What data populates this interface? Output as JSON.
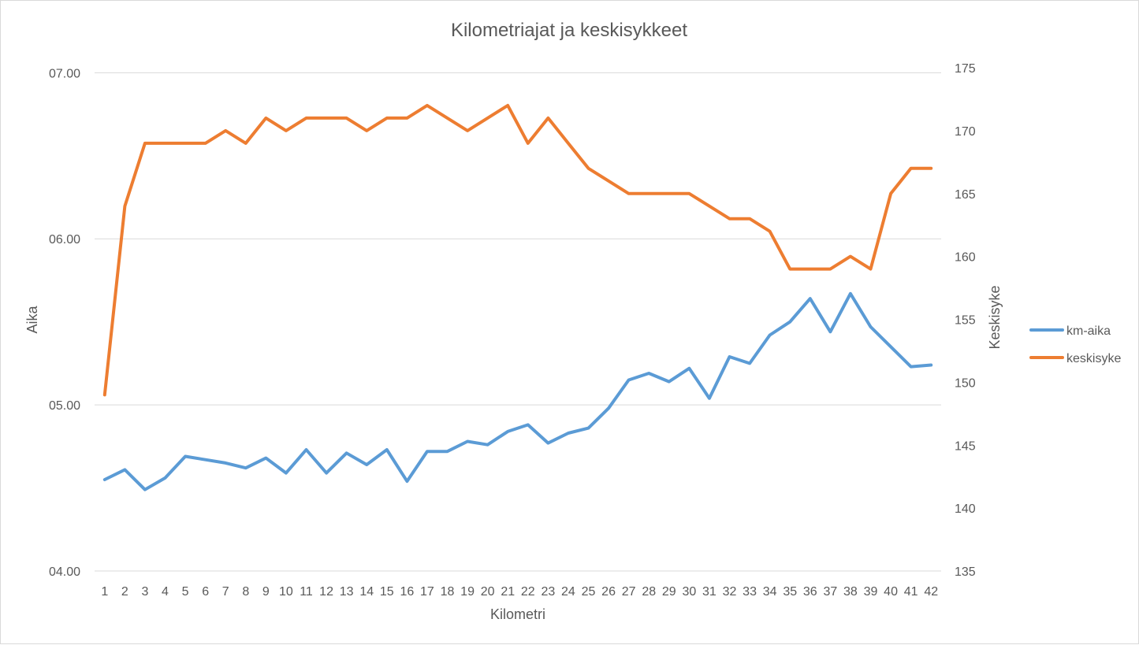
{
  "chart_data": {
    "type": "line",
    "title": "Kilometriajat ja keskisykkeet",
    "xlabel": "Kilometri",
    "ylabel": "Aika",
    "y2label": "Keskisyke",
    "categories": [
      "1",
      "2",
      "3",
      "4",
      "5",
      "6",
      "7",
      "8",
      "9",
      "10",
      "11",
      "12",
      "13",
      "14",
      "15",
      "16",
      "17",
      "18",
      "19",
      "20",
      "21",
      "22",
      "23",
      "24",
      "25",
      "26",
      "27",
      "28",
      "29",
      "30",
      "31",
      "32",
      "33",
      "34",
      "35",
      "36",
      "37",
      "38",
      "39",
      "40",
      "41",
      "42"
    ],
    "y_ticks": [
      "04.00",
      "05.00",
      "06.00",
      "07.00"
    ],
    "y_ticks_values": [
      4,
      5,
      6,
      7
    ],
    "ylim": [
      4,
      7.03
    ],
    "y2_ticks": [
      "135",
      "140",
      "145",
      "150",
      "155",
      "160",
      "165",
      "170",
      "175"
    ],
    "y2_ticks_values": [
      135,
      140,
      145,
      150,
      155,
      160,
      165,
      170,
      175
    ],
    "y2lim": [
      135,
      175
    ],
    "grid": true,
    "legend_position": "right",
    "series": [
      {
        "name": "km-aika",
        "axis": "left",
        "color": "#5b9bd5",
        "values": [
          4.55,
          4.61,
          4.49,
          4.56,
          4.69,
          4.67,
          4.65,
          4.62,
          4.68,
          4.59,
          4.73,
          4.59,
          4.71,
          4.64,
          4.73,
          4.54,
          4.72,
          4.72,
          4.78,
          4.76,
          4.84,
          4.88,
          4.77,
          4.83,
          4.86,
          4.98,
          5.15,
          5.19,
          5.14,
          5.22,
          5.04,
          5.29,
          5.25,
          5.42,
          5.5,
          5.64,
          5.44,
          5.67,
          5.47,
          5.35,
          5.23,
          5.24
        ]
      },
      {
        "name": "keskisyke",
        "axis": "right",
        "color": "#ed7d31",
        "values": [
          149,
          164,
          169,
          169,
          169,
          169,
          170,
          169,
          171,
          170,
          171,
          171,
          171,
          170,
          171,
          171,
          172,
          171,
          170,
          171,
          172,
          169,
          171,
          169,
          167,
          166,
          165,
          165,
          165,
          165,
          164,
          163,
          163,
          162,
          159,
          159,
          159,
          160,
          159,
          165,
          167,
          167
        ]
      }
    ]
  }
}
